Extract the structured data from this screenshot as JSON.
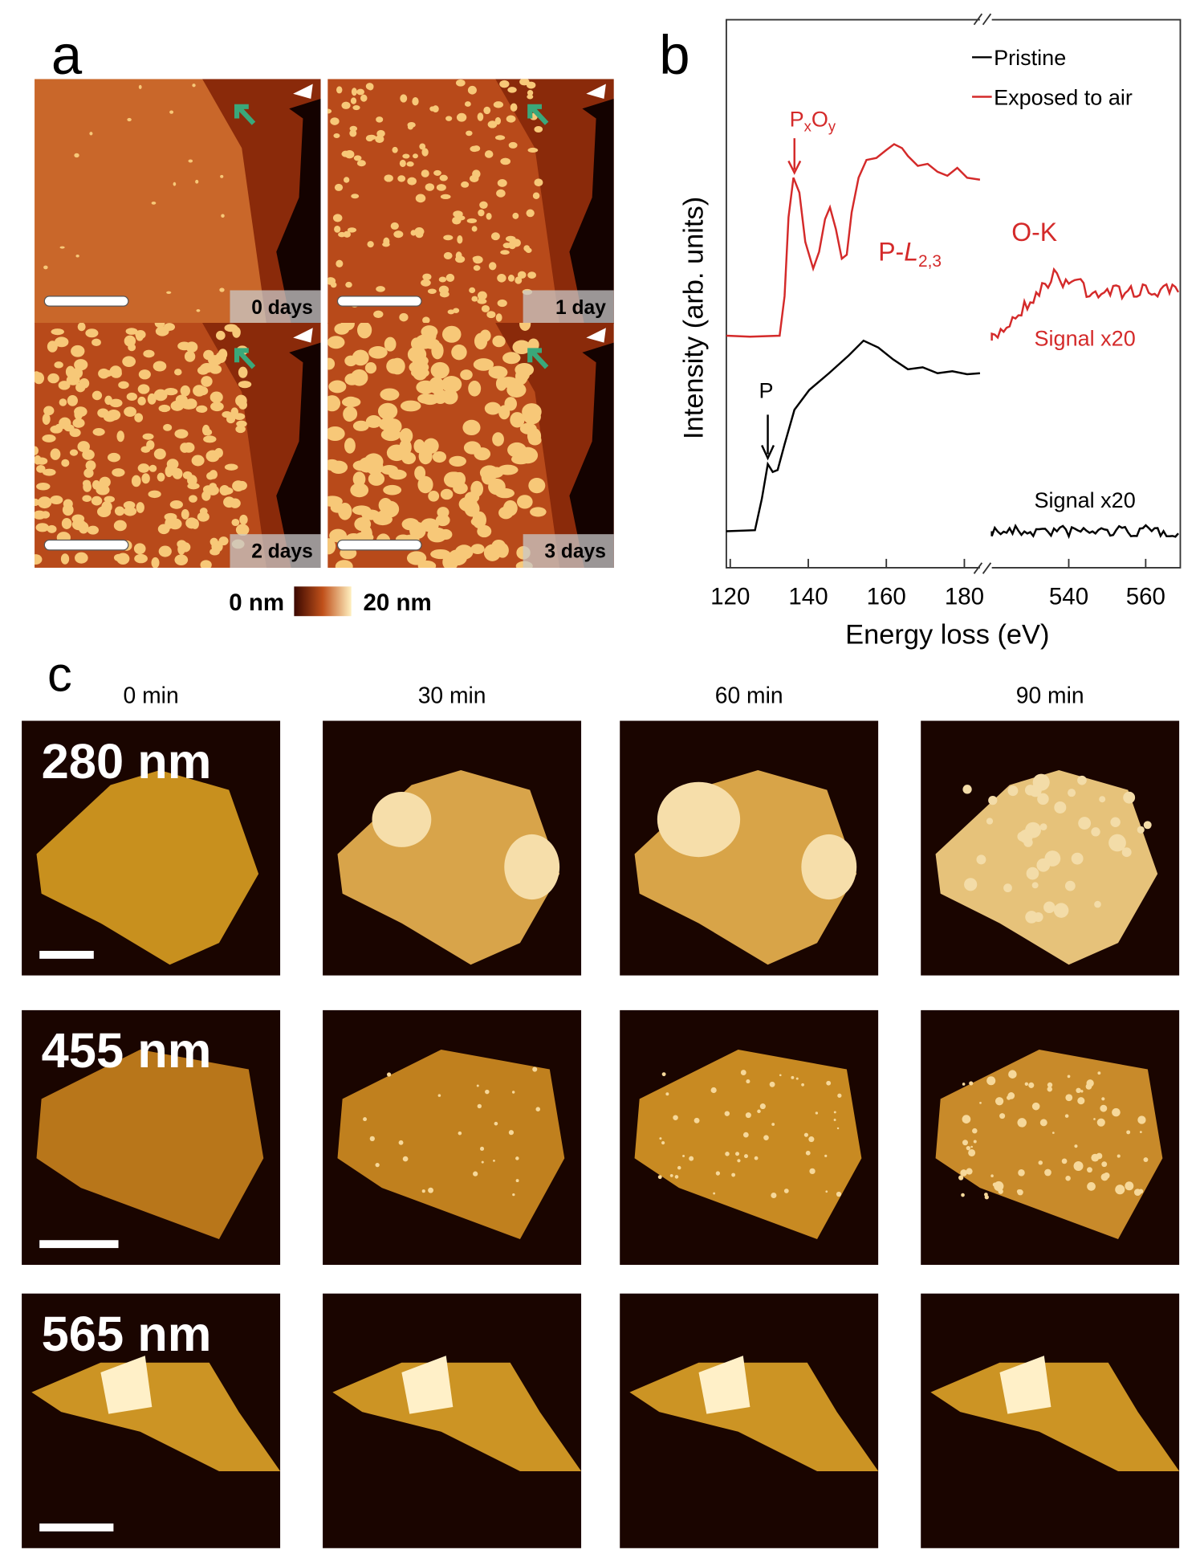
{
  "panel_a": {
    "label": "a",
    "images": [
      "0 days",
      "1 day",
      "2 days",
      "3 days"
    ],
    "colorbar": {
      "min_label": "0 nm",
      "max_label": "20 nm"
    }
  },
  "panel_b": {
    "label": "b",
    "y_label": "Intensity (arb. units)",
    "x_label": "Energy loss (eV)",
    "legend": [
      {
        "name": "Pristine",
        "color": "#000000"
      },
      {
        "name": "Exposed to air",
        "color": "#d42a2a"
      }
    ],
    "xlim_left": [
      119,
      184
    ],
    "xticks_left": [
      120,
      140,
      160,
      180
    ],
    "xlim_right": [
      520,
      569
    ],
    "xticks_right": [
      540,
      560
    ],
    "annotations": {
      "pxoy": [
        "P",
        "x",
        "O",
        "y"
      ],
      "pl23": [
        "P-",
        "L",
        "2,3"
      ],
      "ok": "O-K",
      "signal_red": "Signal x20",
      "signal_black": "Signal x20",
      "p": "P"
    }
  },
  "panel_c": {
    "label": "c",
    "times": [
      "0 min",
      "30 min",
      "60 min",
      "90 min"
    ],
    "thicknesses": [
      "280 nm",
      "455 nm",
      "565 nm"
    ]
  }
}
